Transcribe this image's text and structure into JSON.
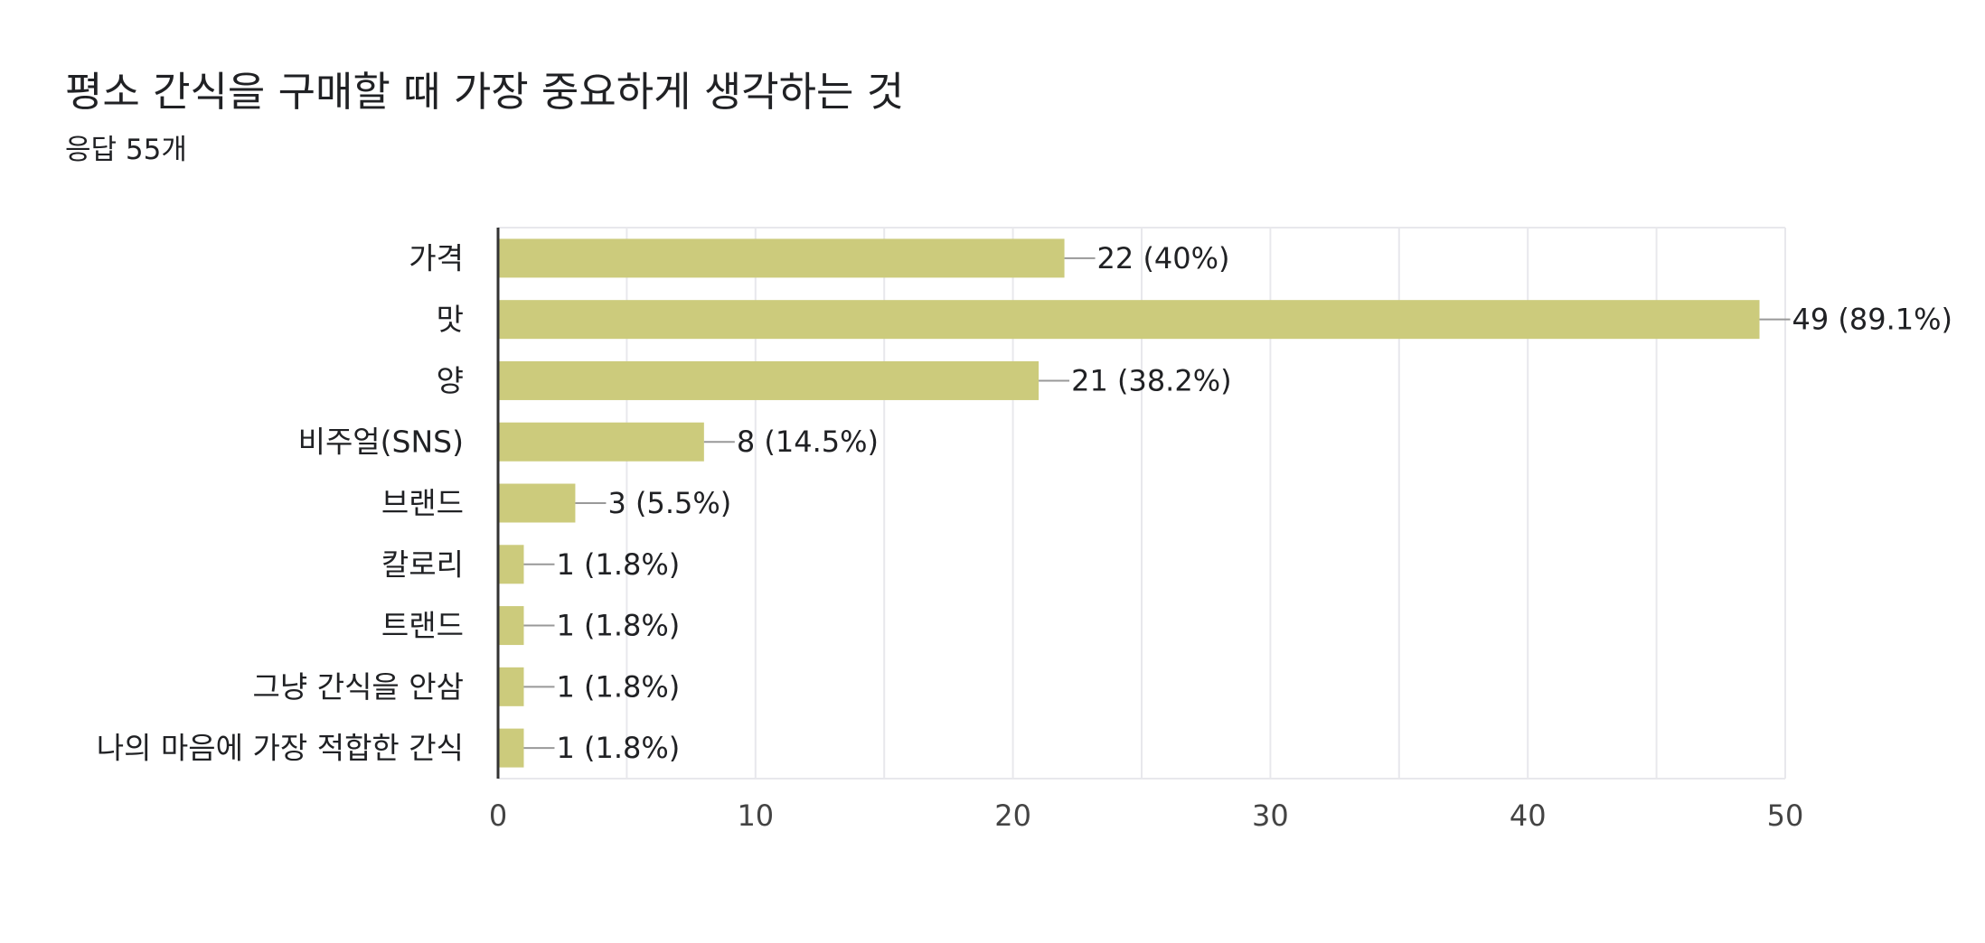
{
  "header": {
    "title": "평소 간식을 구매할 때 가장 중요하게 생각하는 것",
    "subtitle": "응답 55개"
  },
  "colors": {
    "bar": "#cccb7c",
    "axis": "#333333",
    "grid": "#e8e8ec",
    "leader": "#999999",
    "text": "#202124",
    "tick_text": "#444444"
  },
  "chart_data": {
    "type": "bar",
    "orientation": "horizontal",
    "categories": [
      "가격",
      "맛",
      "양",
      "비주얼(SNS)",
      "브랜드",
      "칼로리",
      "트랜드",
      "그냥 간식을 안삼",
      "나의 마음에 가장 적합한 간식"
    ],
    "values": [
      22,
      49,
      21,
      8,
      3,
      1,
      1,
      1,
      1
    ],
    "data_labels": [
      "22 (40%)",
      "49 (89.1%)",
      "21 (38.2%)",
      "8 (14.5%)",
      "3 (5.5%)",
      "1 (1.8%)",
      "1 (1.8%)",
      "1 (1.8%)",
      "1 (1.8%)"
    ],
    "xlim": [
      0,
      50
    ],
    "xticks": [
      0,
      10,
      20,
      30,
      40,
      50
    ],
    "grid": true
  }
}
